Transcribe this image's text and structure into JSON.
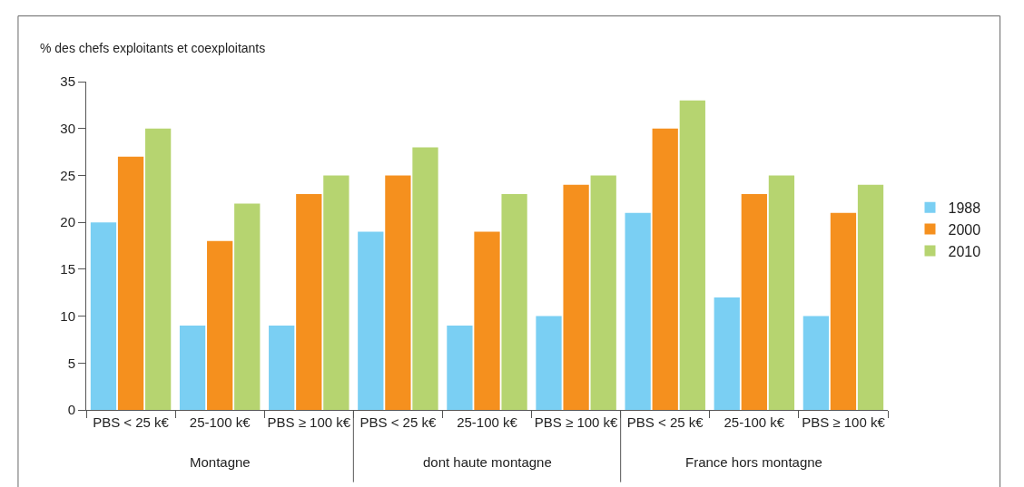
{
  "chart_data": {
    "type": "bar",
    "ylabel": "% des chefs exploitants et coexploitants",
    "categories": [
      "PBS < 25 k€",
      "25-100 k€",
      "PBS ≥ 100 k€",
      "PBS < 25 k€",
      "25-100 k€",
      "PBS ≥ 100 k€",
      "PBS < 25 k€",
      "25-100 k€",
      "PBS ≥ 100 k€"
    ],
    "series": [
      {
        "name": "1988",
        "color": "#7acff3",
        "values": [
          20,
          9,
          9,
          19,
          9,
          10,
          21,
          12,
          10
        ]
      },
      {
        "name": "2000",
        "color": "#f5901e",
        "values": [
          27,
          18,
          23,
          25,
          19,
          24,
          30,
          23,
          21
        ]
      },
      {
        "name": "2010",
        "color": "#b6d470",
        "values": [
          30,
          22,
          25,
          28,
          23,
          25,
          33,
          25,
          24
        ]
      }
    ],
    "annotations": [
      "Montagne",
      "dont haute montagne",
      "France hors montagne"
    ],
    "ylim": [
      0,
      35
    ],
    "yticks": [
      0,
      5,
      10,
      15,
      20,
      25,
      30,
      35
    ],
    "legend": "right"
  }
}
